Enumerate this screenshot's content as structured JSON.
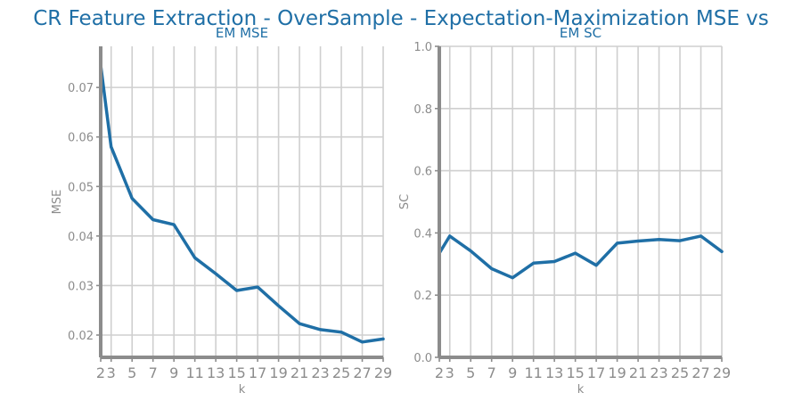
{
  "title": "CR Feature Extraction - OverSample - Expectation-Maximization MSE vs",
  "chart_data": [
    {
      "type": "line",
      "title": "EM MSE",
      "xlabel": "k",
      "ylabel": "MSE",
      "x": [
        2,
        3,
        5,
        7,
        9,
        11,
        13,
        15,
        17,
        19,
        21,
        23,
        25,
        27,
        29
      ],
      "xticks": [
        2,
        3,
        5,
        7,
        9,
        11,
        13,
        15,
        17,
        19,
        21,
        23,
        25,
        27,
        29
      ],
      "yticks": [
        0.02,
        0.03,
        0.04,
        0.05,
        0.06,
        0.07
      ],
      "ytick_labels": [
        "0.02",
        "0.03",
        "0.04",
        "0.05",
        "0.06",
        "0.07"
      ],
      "xlim": [
        2,
        29
      ],
      "ylim": [
        0.0155,
        0.0783
      ],
      "grid": true,
      "series": [
        {
          "color": "#1f6fa6",
          "values": [
            0.0745,
            0.058,
            0.0476,
            0.0433,
            0.0423,
            0.0356,
            0.0324,
            0.029,
            0.0297,
            0.0259,
            0.0223,
            0.0211,
            0.0206,
            0.0186,
            0.0192
          ]
        }
      ]
    },
    {
      "type": "line",
      "title": "EM SC",
      "xlabel": "k",
      "ylabel": "SC",
      "x": [
        2,
        3,
        5,
        7,
        9,
        11,
        13,
        15,
        17,
        19,
        21,
        23,
        25,
        27,
        29
      ],
      "xticks": [
        2,
        3,
        5,
        7,
        9,
        11,
        13,
        15,
        17,
        19,
        21,
        23,
        25,
        27,
        29
      ],
      "yticks": [
        0.0,
        0.2,
        0.4,
        0.6,
        0.8,
        1.0
      ],
      "ytick_labels": [
        "0.0",
        "0.2",
        "0.4",
        "0.6",
        "0.8",
        "1.0"
      ],
      "xlim": [
        2,
        29
      ],
      "ylim": [
        0.0,
        1.0
      ],
      "grid": true,
      "series": [
        {
          "color": "#1f6fa6",
          "values": [
            0.335,
            0.39,
            0.342,
            0.285,
            0.256,
            0.303,
            0.308,
            0.335,
            0.296,
            0.367,
            0.374,
            0.379,
            0.375,
            0.39,
            0.34
          ]
        }
      ]
    }
  ]
}
